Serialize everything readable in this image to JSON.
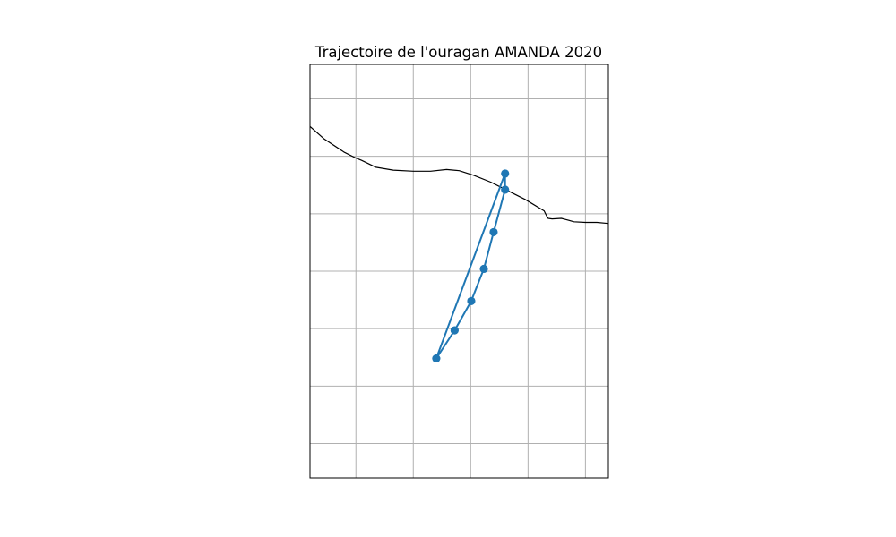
{
  "chart_data": {
    "type": "map-track",
    "title": "Trajectoire de l'ouragan AMANDA 2020",
    "xlabel": "",
    "ylabel": "",
    "grid": true,
    "legend": "none",
    "xlim": [
      -92.8,
      -87.6
    ],
    "ylim": [
      10.0,
      17.2
    ],
    "gridlines": {
      "lon": [
        -92,
        -91,
        -90,
        -89,
        -88
      ],
      "lat": [
        10.6,
        11.6,
        12.6,
        13.6,
        14.6,
        15.6,
        16.6
      ]
    },
    "track": {
      "color": "#1f77b4",
      "points": [
        {
          "lon": -89.4,
          "lat": 15.3
        },
        {
          "lon": -89.4,
          "lat": 15.02
        },
        {
          "lon": -89.6,
          "lat": 14.28
        },
        {
          "lon": -89.77,
          "lat": 13.64
        },
        {
          "lon": -89.99,
          "lat": 13.08
        },
        {
          "lon": -90.28,
          "lat": 12.57
        },
        {
          "lon": -90.6,
          "lat": 12.08
        },
        {
          "lon": -89.4,
          "lat": 15.3
        },
        {
          "lon": -89.4,
          "lat": 15.02
        },
        {
          "lon": -89.6,
          "lat": 14.28
        },
        {
          "lon": -89.77,
          "lat": 13.64
        },
        {
          "lon": -89.99,
          "lat": 13.08
        },
        {
          "lon": -90.28,
          "lat": 12.57
        },
        {
          "lon": -90.6,
          "lat": 12.08
        }
      ]
    },
    "coastline": {
      "color": "#000000",
      "points": [
        [
          -92.8,
          16.12
        ],
        [
          -92.55,
          15.9
        ],
        [
          -92.2,
          15.67
        ],
        [
          -92.0,
          15.57
        ],
        [
          -91.9,
          15.53
        ],
        [
          -91.65,
          15.41
        ],
        [
          -91.35,
          15.36
        ],
        [
          -91.0,
          15.34
        ],
        [
          -90.7,
          15.34
        ],
        [
          -90.42,
          15.37
        ],
        [
          -90.2,
          15.35
        ],
        [
          -89.95,
          15.27
        ],
        [
          -89.65,
          15.15
        ],
        [
          -89.35,
          15.0
        ],
        [
          -89.05,
          14.85
        ],
        [
          -88.72,
          14.65
        ],
        [
          -88.68,
          14.57
        ],
        [
          -88.65,
          14.52
        ],
        [
          -88.58,
          14.51
        ],
        [
          -88.42,
          14.52
        ],
        [
          -88.35,
          14.5
        ],
        [
          -88.2,
          14.46
        ],
        [
          -88.0,
          14.45
        ],
        [
          -87.8,
          14.45
        ],
        [
          -87.6,
          14.43
        ]
      ]
    }
  }
}
